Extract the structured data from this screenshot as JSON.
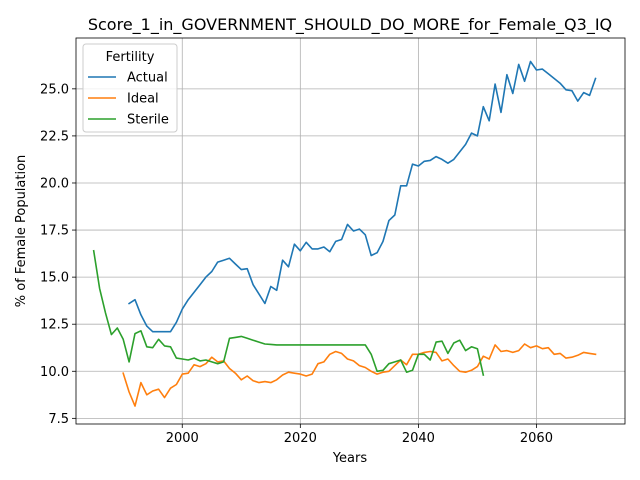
{
  "chart_data": {
    "type": "line",
    "title": "Score_1_in_GOVERNMENT_SHOULD_DO_MORE_for_Female_Q3_IQ",
    "xlabel": "Years",
    "ylabel": "% of Female Population",
    "xlim": [
      1982,
      2075
    ],
    "ylim": [
      7.2,
      27.7
    ],
    "xticks": [
      2000,
      2020,
      2040,
      2060
    ],
    "yticks": [
      7.5,
      10.0,
      12.5,
      15.0,
      17.5,
      20.0,
      22.5,
      25.0
    ],
    "grid": true,
    "legend": {
      "title": "Fertility",
      "position": "top-left"
    },
    "series": [
      {
        "name": "Actual",
        "color": "#1f77b4",
        "x": [
          1991,
          1992,
          1993,
          1994,
          1995,
          1996,
          1997,
          1998,
          1999,
          2000,
          2001,
          2002,
          2003,
          2004,
          2005,
          2006,
          2007,
          2008,
          2009,
          2010,
          2011,
          2012,
          2013,
          2014,
          2015,
          2016,
          2017,
          2018,
          2019,
          2020,
          2021,
          2022,
          2023,
          2024,
          2025,
          2026,
          2027,
          2028,
          2029,
          2030,
          2031,
          2032,
          2033,
          2034,
          2035,
          2036,
          2037,
          2038,
          2039,
          2040,
          2041,
          2042,
          2043,
          2044,
          2045,
          2046,
          2047,
          2048,
          2049,
          2050,
          2051,
          2052,
          2053,
          2054,
          2055,
          2056,
          2057,
          2058,
          2059,
          2060,
          2061,
          2062,
          2063,
          2064,
          2065,
          2066,
          2067,
          2068,
          2069,
          2070
        ],
        "values": [
          13.6,
          13.8,
          13.0,
          12.4,
          12.1,
          12.1,
          12.1,
          12.1,
          12.6,
          13.3,
          13.8,
          14.2,
          14.6,
          15.0,
          15.3,
          15.8,
          15.9,
          16.0,
          15.7,
          15.4,
          15.45,
          14.6,
          14.1,
          13.6,
          14.5,
          14.3,
          15.9,
          15.55,
          16.75,
          16.4,
          16.85,
          16.5,
          16.5,
          16.6,
          16.35,
          16.9,
          17.0,
          17.8,
          17.45,
          17.55,
          17.25,
          16.15,
          16.3,
          16.9,
          18.0,
          18.3,
          19.85,
          19.85,
          21.0,
          20.9,
          21.15,
          21.2,
          21.4,
          21.25,
          21.05,
          21.25,
          21.65,
          22.05,
          22.65,
          22.5,
          24.05,
          23.3,
          25.25,
          23.75,
          25.75,
          24.75,
          26.3,
          25.4,
          26.45,
          26.0,
          26.05,
          25.8,
          25.55,
          25.3,
          24.95,
          24.9,
          24.35,
          24.8,
          24.65,
          25.55
        ]
      },
      {
        "name": "Ideal",
        "color": "#ff7f0e",
        "x": [
          1990,
          1991,
          1992,
          1993,
          1994,
          1995,
          1996,
          1997,
          1998,
          1999,
          2000,
          2001,
          2002,
          2003,
          2004,
          2005,
          2006,
          2007,
          2008,
          2009,
          2010,
          2011,
          2012,
          2013,
          2014,
          2015,
          2016,
          2017,
          2018,
          2019,
          2020,
          2021,
          2022,
          2023,
          2024,
          2025,
          2026,
          2027,
          2028,
          2029,
          2030,
          2031,
          2032,
          2033,
          2034,
          2035,
          2036,
          2037,
          2038,
          2039,
          2040,
          2041,
          2042,
          2043,
          2044,
          2045,
          2046,
          2047,
          2048,
          2049,
          2050,
          2051,
          2052,
          2053,
          2054,
          2055,
          2056,
          2057,
          2058,
          2059,
          2060,
          2061,
          2062,
          2063,
          2064,
          2065,
          2066,
          2067,
          2068,
          2069,
          2070
        ],
        "values": [
          9.9,
          8.9,
          8.15,
          9.4,
          8.75,
          8.95,
          9.05,
          8.6,
          9.1,
          9.3,
          9.85,
          9.9,
          10.35,
          10.25,
          10.4,
          10.75,
          10.5,
          10.55,
          10.15,
          9.9,
          9.55,
          9.75,
          9.5,
          9.4,
          9.45,
          9.4,
          9.55,
          9.8,
          9.95,
          9.9,
          9.85,
          9.75,
          9.85,
          10.4,
          10.5,
          10.9,
          11.05,
          10.95,
          10.65,
          10.55,
          10.3,
          10.2,
          10.0,
          9.85,
          9.95,
          10.0,
          10.3,
          10.6,
          10.35,
          10.9,
          10.9,
          11.0,
          11.05,
          11.0,
          10.55,
          10.65,
          10.3,
          10.0,
          9.95,
          10.05,
          10.25,
          10.8,
          10.65,
          11.4,
          11.05,
          11.1,
          11.0,
          11.1,
          11.45,
          11.25,
          11.35,
          11.2,
          11.25,
          10.9,
          10.95,
          10.7,
          10.75,
          10.85,
          11.0,
          10.95,
          10.9
        ]
      },
      {
        "name": "Sterile",
        "color": "#2ca02c",
        "x": [
          1985,
          1986,
          1987,
          1988,
          1989,
          1990,
          1991,
          1992,
          1993,
          1994,
          1995,
          1996,
          1997,
          1998,
          1999,
          2000,
          2001,
          2002,
          2003,
          2004,
          2005,
          2006,
          2007,
          2008,
          2009,
          2010,
          2011,
          2012,
          2013,
          2014,
          2015,
          2016,
          2017,
          2018,
          2019,
          2020,
          2021,
          2022,
          2023,
          2024,
          2025,
          2026,
          2027,
          2028,
          2029,
          2030,
          2031,
          2032,
          2033,
          2034,
          2035,
          2036,
          2037,
          2038,
          2039,
          2040,
          2041,
          2042,
          2043,
          2044,
          2045,
          2046,
          2047,
          2048,
          2049,
          2050,
          2051
        ],
        "values": [
          16.4,
          14.4,
          13.1,
          11.95,
          12.3,
          11.7,
          10.5,
          12.0,
          12.15,
          11.3,
          11.25,
          11.7,
          11.35,
          11.3,
          10.7,
          10.65,
          10.6,
          10.7,
          10.55,
          10.6,
          10.5,
          10.4,
          10.5,
          11.75,
          11.8,
          11.85,
          11.75,
          11.65,
          11.55,
          11.45,
          11.43,
          11.4,
          11.4,
          11.4,
          11.4,
          11.4,
          11.4,
          11.4,
          11.4,
          11.4,
          11.4,
          11.4,
          11.4,
          11.4,
          11.4,
          11.4,
          11.4,
          10.9,
          10.0,
          10.05,
          10.4,
          10.5,
          10.6,
          9.95,
          10.05,
          10.9,
          10.9,
          10.6,
          11.55,
          11.6,
          10.95,
          11.5,
          11.65,
          11.1,
          11.3,
          11.2,
          9.8
        ]
      }
    ]
  }
}
